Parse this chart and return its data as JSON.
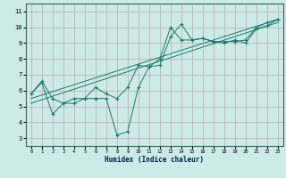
{
  "background_color": "#cceae8",
  "grid_color": "#c0a8a8",
  "line_color": "#1a7a6a",
  "xlabel": "Humidex (Indice chaleur)",
  "xlim": [
    -0.5,
    23.5
  ],
  "ylim": [
    2.5,
    11.5
  ],
  "xticks": [
    0,
    1,
    2,
    3,
    4,
    5,
    6,
    7,
    8,
    9,
    10,
    11,
    12,
    13,
    14,
    15,
    16,
    17,
    18,
    19,
    20,
    21,
    22,
    23
  ],
  "yticks": [
    3,
    4,
    5,
    6,
    7,
    8,
    9,
    10,
    11
  ],
  "series1_x": [
    0,
    1,
    2,
    3,
    4,
    5,
    6,
    7,
    8,
    9,
    10,
    11,
    12,
    13,
    14,
    15,
    16,
    17,
    18,
    19,
    20,
    21,
    22,
    23
  ],
  "series1_y": [
    5.8,
    6.5,
    4.5,
    5.2,
    5.2,
    5.5,
    5.5,
    5.5,
    3.2,
    3.4,
    6.2,
    7.5,
    7.6,
    9.4,
    10.2,
    9.2,
    9.3,
    9.1,
    9.1,
    9.1,
    9.2,
    10.0,
    10.3,
    10.5
  ],
  "series2_x": [
    0,
    1,
    2,
    3,
    4,
    5,
    6,
    7,
    8,
    9,
    10,
    11,
    12,
    13,
    14,
    15,
    16,
    17,
    18,
    19,
    20,
    21,
    22,
    23
  ],
  "series2_y": [
    5.8,
    6.6,
    5.5,
    5.2,
    5.5,
    5.5,
    6.2,
    5.8,
    5.5,
    6.2,
    7.6,
    7.5,
    8.0,
    10.0,
    9.2,
    9.2,
    9.3,
    9.1,
    9.0,
    9.2,
    9.0,
    9.9,
    10.1,
    10.5
  ],
  "series3_x": [
    0,
    23
  ],
  "series3_y": [
    5.5,
    10.5
  ],
  "series4_x": [
    0,
    23
  ],
  "series4_y": [
    5.2,
    10.3
  ]
}
